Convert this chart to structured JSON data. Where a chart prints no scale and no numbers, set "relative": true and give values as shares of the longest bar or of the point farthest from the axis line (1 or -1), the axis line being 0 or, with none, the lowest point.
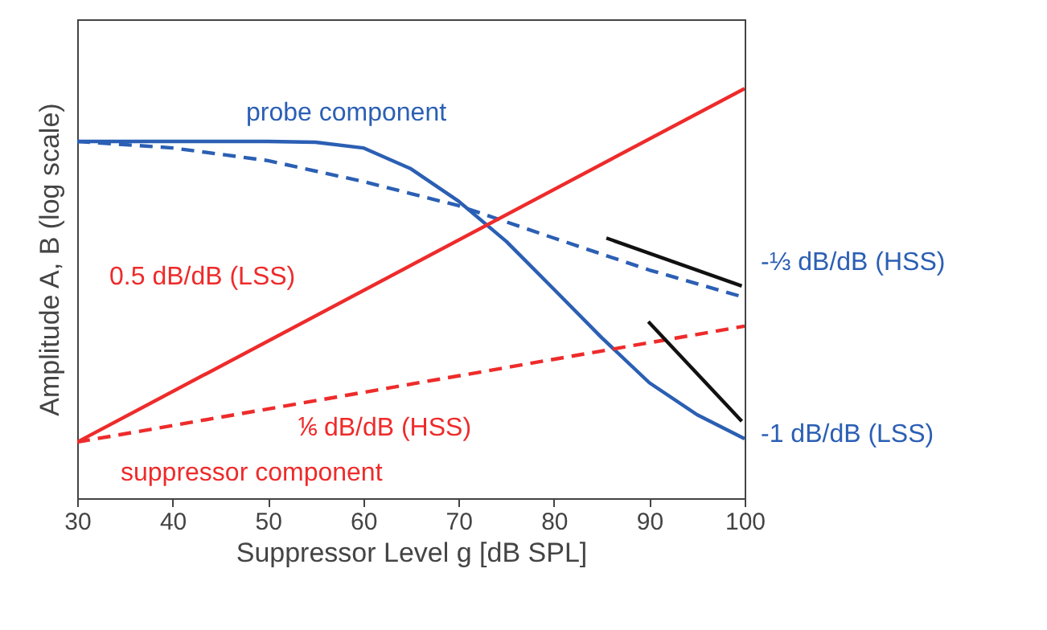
{
  "chart_data": {
    "type": "line",
    "relative": true,
    "xlabel": "Suppressor Level g [dB SPL]",
    "ylabel": "Amplitude A, B (log scale)",
    "xlim": [
      30,
      100
    ],
    "xticks": [
      30,
      40,
      50,
      60,
      70,
      80,
      90,
      100
    ],
    "grid": false,
    "marker": "none",
    "series": [
      {
        "color": "#2b5fb4",
        "line_style": "solid",
        "x": [
          30,
          40,
          50,
          55,
          60,
          65,
          70,
          75,
          80,
          85,
          90,
          95,
          100
        ],
        "values": [
          0.871,
          0.871,
          0.871,
          0.869,
          0.855,
          0.804,
          0.725,
          0.627,
          0.51,
          0.392,
          0.282,
          0.204,
          0.145
        ]
      },
      {
        "color": "#2b5fb4",
        "line_style": "dashed",
        "x": [
          30,
          40,
          50,
          60,
          70,
          80,
          90,
          100
        ],
        "values": [
          0.871,
          0.855,
          0.824,
          0.773,
          0.714,
          0.635,
          0.557,
          0.49
        ]
      },
      {
        "color": "#ee2b2b",
        "line_style": "solid",
        "x": [
          30,
          100
        ],
        "values": [
          0.137,
          1
        ]
      },
      {
        "color": "#ee2b2b",
        "line_style": "dashed",
        "x": [
          30,
          100
        ],
        "values": [
          0.137,
          0.42
        ]
      },
      {
        "color": "#111111",
        "line_style": "solid",
        "x": [
          85.5,
          99.7
        ],
        "values": [
          0.635,
          0.518
        ]
      },
      {
        "color": "#111111",
        "line_style": "solid",
        "x": [
          89.9,
          99.7
        ],
        "values": [
          0.431,
          0.188
        ]
      }
    ],
    "annotations": [
      "probe component",
      "0.5 dB/dB (LSS)",
      "⅙ dB/dB (HSS)",
      "suppressor component",
      "-⅓ dB/dB (HSS)",
      "-1 dB/dB (LSS)"
    ]
  }
}
